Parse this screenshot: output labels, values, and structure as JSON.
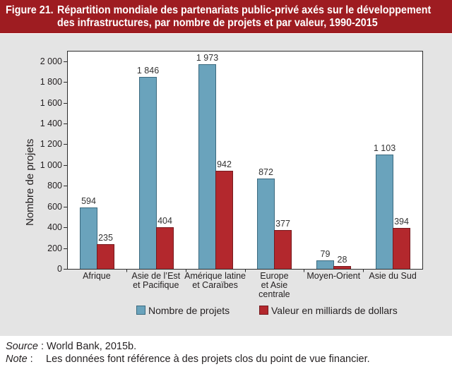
{
  "chart_data": {
    "type": "bar",
    "figure_label": "Figure 21.",
    "title_lines": [
      "Répartition mondiale des partenariats public-privé axés sur le développement",
      "des infrastructures, par nombre de projets et par valeur, 1990-2015"
    ],
    "ylabel": "Nombre de projets",
    "ylim": [
      0,
      2100
    ],
    "yticks": [
      0,
      200,
      400,
      600,
      800,
      1000,
      1200,
      1400,
      1600,
      1800,
      2000
    ],
    "ytick_labels": [
      "0",
      "200",
      "400",
      "600",
      "800",
      "1 000",
      "1 200",
      "1 400",
      "1 600",
      "1 800",
      "2 000"
    ],
    "categories": [
      "Afrique",
      "Asie de l’Est\net Pacifique",
      "Amérique latine\net Caraïbes",
      "Europe\net Asie\ncentrale",
      "Moyen-Orient",
      "Asie du Sud"
    ],
    "series": [
      {
        "name": "Nombre de projets",
        "color": "#6aa3bc",
        "border": "#3b6a7f",
        "values": [
          594,
          1846,
          1973,
          872,
          79,
          1103
        ],
        "labels": [
          "594",
          "1 846",
          "1 973",
          "872",
          "79",
          "1 103"
        ]
      },
      {
        "name": "Valeur en milliards de dollars",
        "color": "#b3282d",
        "border": "#761a1e",
        "values": [
          235,
          404,
          942,
          377,
          28,
          394
        ],
        "labels": [
          "235",
          "404",
          "942",
          "377",
          "28",
          "394"
        ]
      }
    ],
    "grid": false,
    "legend": "bottom"
  },
  "colors": {
    "header": "#9e1c21",
    "panel": "#e4e4e4"
  },
  "footer": {
    "source": {
      "label": "Source",
      "colon": ":",
      "text": "World Bank, 2015b."
    },
    "note": {
      "label": "Note",
      "colon": ":",
      "text": "Les données font référence à des projets clos du point de vue financier."
    }
  }
}
